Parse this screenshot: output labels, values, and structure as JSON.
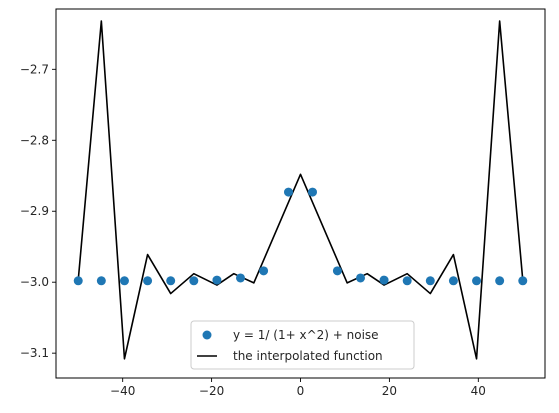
{
  "chart_data": {
    "type": "scatter",
    "title": "",
    "xlabel": "",
    "ylabel": "",
    "xlim": [
      -55,
      55
    ],
    "ylim": [
      -3.135,
      -2.615
    ],
    "xticks": [
      -40,
      -20,
      0,
      20,
      40
    ],
    "xtick_labels": [
      "−40",
      "−20",
      "0",
      "20",
      "40"
    ],
    "yticks": [
      -3.1,
      -3.0,
      -2.9,
      -2.8,
      -2.7
    ],
    "ytick_labels": [
      "−3.1",
      "−3.0",
      "−2.9",
      "−2.8",
      "−2.7"
    ],
    "grid": false,
    "legend_position": "lower center",
    "series": [
      {
        "name": "y = 1/ (1+ x^2) + noise",
        "kind": "scatter",
        "color": "#1f77b4",
        "x": [
          -50,
          -44.8,
          -39.6,
          -34.4,
          -29.2,
          -24,
          -18.8,
          -13.5,
          -8.3,
          -2.7,
          2.7,
          8.3,
          13.5,
          18.8,
          24,
          29.2,
          34.4,
          39.6,
          44.8,
          50
        ],
        "y": [
          -2.998,
          -2.998,
          -2.998,
          -2.998,
          -2.998,
          -2.998,
          -2.997,
          -2.994,
          -2.984,
          -2.873,
          -2.873,
          -2.984,
          -2.994,
          -2.997,
          -2.998,
          -2.998,
          -2.998,
          -2.998,
          -2.998,
          -2.998
        ]
      },
      {
        "name": "the interpolated function",
        "kind": "line",
        "color": "#000000",
        "x": [
          -50,
          -44.8,
          -39.6,
          -34.4,
          -29.2,
          -24,
          -18.8,
          -15,
          -10.5,
          0,
          10.5,
          15,
          18.8,
          24,
          29.2,
          34.4,
          39.6,
          44.8,
          50
        ],
        "y": [
          -2.997,
          -2.632,
          -3.108,
          -2.961,
          -3.016,
          -2.988,
          -3.004,
          -2.988,
          -3.001,
          -2.848,
          -3.001,
          -2.988,
          -3.004,
          -2.988,
          -3.016,
          -2.961,
          -3.108,
          -2.632,
          -2.997
        ]
      }
    ]
  }
}
